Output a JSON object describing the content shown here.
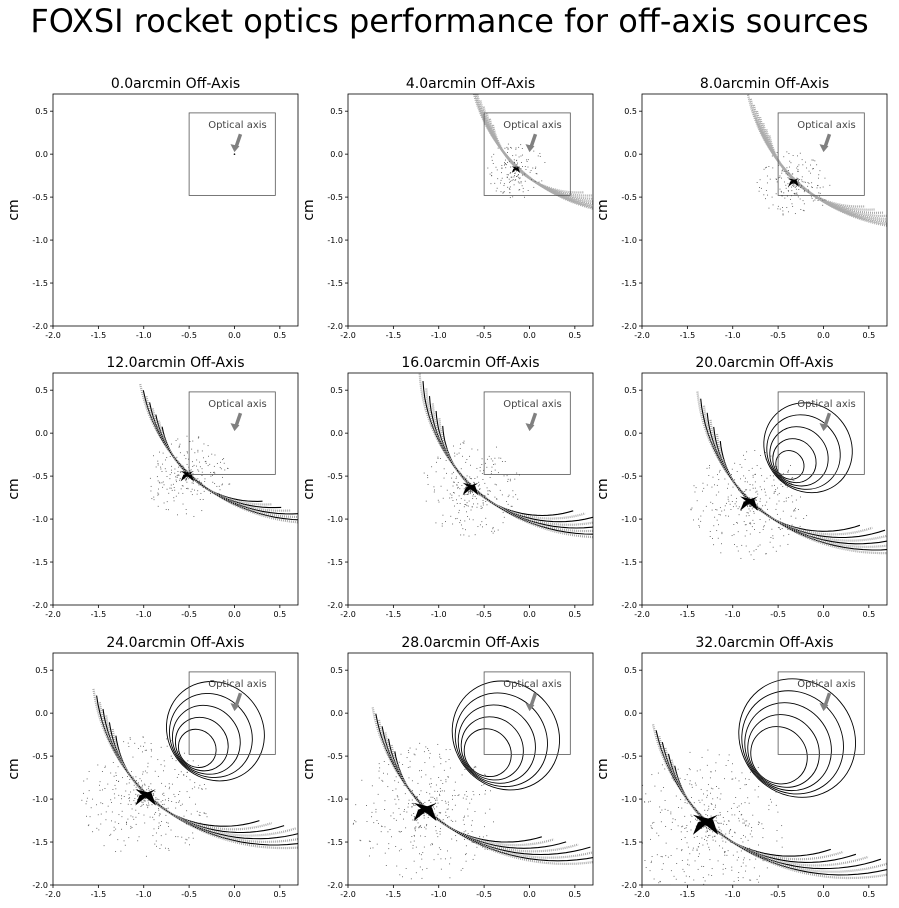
{
  "figure": {
    "title": "FOXSI rocket optics performance for off-axis sources"
  },
  "chart_data": [
    {
      "type": "scatter",
      "title": "0.0arcmin Off-Axis",
      "offaxis_arcmin": 0.0,
      "ylabel": "cm",
      "xlabel": "",
      "xlim": [
        -2.0,
        0.7
      ],
      "ylim": [
        -2.0,
        0.7
      ],
      "xticks": [
        "-2.0",
        "-1.5",
        "-1.0",
        "-0.5",
        "0.0",
        "0.5"
      ],
      "yticks": [
        "-2.0",
        "-1.5",
        "-1.0",
        "-0.5",
        "0.0",
        "0.5"
      ],
      "inset_box": {
        "x0": -0.5,
        "x1": 0.45,
        "y0": -0.48,
        "y1": 0.48
      },
      "annotation": {
        "text": "Optical axis",
        "point": [
          0.0,
          0.0
        ]
      },
      "focus": [
        0.0,
        0.0
      ]
    },
    {
      "type": "scatter",
      "title": "4.0arcmin Off-Axis",
      "offaxis_arcmin": 4.0,
      "ylabel": "cm",
      "xlabel": "",
      "xlim": [
        -2.0,
        0.7
      ],
      "ylim": [
        -2.0,
        0.7
      ],
      "xticks": [
        "-2.0",
        "-1.5",
        "-1.0",
        "-0.5",
        "0.0",
        "0.5"
      ],
      "yticks": [
        "-2.0",
        "-1.5",
        "-1.0",
        "-0.5",
        "0.0",
        "0.5"
      ],
      "inset_box": {
        "x0": -0.5,
        "x1": 0.45,
        "y0": -0.48,
        "y1": 0.48
      },
      "annotation": {
        "text": "Optical axis",
        "point": [
          0.0,
          0.0
        ]
      },
      "focus": [
        -0.15,
        -0.18
      ]
    },
    {
      "type": "scatter",
      "title": "8.0arcmin Off-Axis",
      "offaxis_arcmin": 8.0,
      "ylabel": "cm",
      "xlabel": "",
      "xlim": [
        -2.0,
        0.7
      ],
      "ylim": [
        -2.0,
        0.7
      ],
      "xticks": [
        "-2.0",
        "-1.5",
        "-1.0",
        "-0.5",
        "0.0",
        "0.5"
      ],
      "yticks": [
        "-2.0",
        "-1.5",
        "-1.0",
        "-0.5",
        "0.0",
        "0.5"
      ],
      "inset_box": {
        "x0": -0.5,
        "x1": 0.45,
        "y0": -0.48,
        "y1": 0.48
      },
      "annotation": {
        "text": "Optical axis",
        "point": [
          0.0,
          0.0
        ]
      },
      "focus": [
        -0.33,
        -0.33
      ]
    },
    {
      "type": "scatter",
      "title": "12.0arcmin Off-Axis",
      "offaxis_arcmin": 12.0,
      "ylabel": "cm",
      "xlabel": "",
      "xlim": [
        -2.0,
        0.7
      ],
      "ylim": [
        -2.0,
        0.7
      ],
      "xticks": [
        "-2.0",
        "-1.5",
        "-1.0",
        "-0.5",
        "0.0",
        "0.5"
      ],
      "yticks": [
        "-2.0",
        "-1.5",
        "-1.0",
        "-0.5",
        "0.0",
        "0.5"
      ],
      "inset_box": {
        "x0": -0.5,
        "x1": 0.45,
        "y0": -0.48,
        "y1": 0.48
      },
      "annotation": {
        "text": "Optical axis",
        "point": [
          0.0,
          0.0
        ]
      },
      "focus": [
        -0.52,
        -0.5
      ]
    },
    {
      "type": "scatter",
      "title": "16.0arcmin Off-Axis",
      "offaxis_arcmin": 16.0,
      "ylabel": "cm",
      "xlabel": "",
      "xlim": [
        -2.0,
        0.7
      ],
      "ylim": [
        -2.0,
        0.7
      ],
      "xticks": [
        "-2.0",
        "-1.5",
        "-1.0",
        "-0.5",
        "0.0",
        "0.5"
      ],
      "yticks": [
        "-2.0",
        "-1.5",
        "-1.0",
        "-0.5",
        "0.0",
        "0.5"
      ],
      "inset_box": {
        "x0": -0.5,
        "x1": 0.45,
        "y0": -0.48,
        "y1": 0.48
      },
      "annotation": {
        "text": "Optical axis",
        "point": [
          0.0,
          0.0
        ]
      },
      "focus": [
        -0.65,
        -0.65
      ]
    },
    {
      "type": "scatter",
      "title": "20.0arcmin Off-Axis",
      "offaxis_arcmin": 20.0,
      "ylabel": "cm",
      "xlabel": "",
      "xlim": [
        -2.0,
        0.7
      ],
      "ylim": [
        -2.0,
        0.7
      ],
      "xticks": [
        "-2.0",
        "-1.5",
        "-1.0",
        "-0.5",
        "0.0",
        "0.5"
      ],
      "yticks": [
        "-2.0",
        "-1.5",
        "-1.0",
        "-0.5",
        "0.0",
        "0.5"
      ],
      "inset_box": {
        "x0": -0.5,
        "x1": 0.45,
        "y0": -0.48,
        "y1": 0.48
      },
      "annotation": {
        "text": "Optical axis",
        "point": [
          0.0,
          0.0
        ]
      },
      "focus": [
        -0.82,
        -0.82
      ]
    },
    {
      "type": "scatter",
      "title": "24.0arcmin Off-Axis",
      "offaxis_arcmin": 24.0,
      "ylabel": "cm",
      "xlabel": "",
      "xlim": [
        -2.0,
        0.7
      ],
      "ylim": [
        -2.0,
        0.7
      ],
      "xticks": [
        "-2.0",
        "-1.5",
        "-1.0",
        "-0.5",
        "0.0",
        "0.5"
      ],
      "yticks": [
        "-2.0",
        "-1.5",
        "-1.0",
        "-0.5",
        "0.0",
        "0.5"
      ],
      "inset_box": {
        "x0": -0.5,
        "x1": 0.45,
        "y0": -0.48,
        "y1": 0.48
      },
      "annotation": {
        "text": "Optical axis",
        "point": [
          0.0,
          0.0
        ]
      },
      "focus": [
        -0.98,
        -0.98
      ]
    },
    {
      "type": "scatter",
      "title": "28.0arcmin Off-Axis",
      "offaxis_arcmin": 28.0,
      "ylabel": "cm",
      "xlabel": "",
      "xlim": [
        -2.0,
        0.7
      ],
      "ylim": [
        -2.0,
        0.7
      ],
      "xticks": [
        "-2.0",
        "-1.5",
        "-1.0",
        "-0.5",
        "0.0",
        "0.5"
      ],
      "yticks": [
        "-2.0",
        "-1.5",
        "-1.0",
        "-0.5",
        "0.0",
        "0.5"
      ],
      "inset_box": {
        "x0": -0.5,
        "x1": 0.45,
        "y0": -0.48,
        "y1": 0.48
      },
      "annotation": {
        "text": "Optical axis",
        "point": [
          0.0,
          0.0
        ]
      },
      "focus": [
        -1.15,
        -1.15
      ]
    },
    {
      "type": "scatter",
      "title": "32.0arcmin Off-Axis",
      "offaxis_arcmin": 32.0,
      "ylabel": "cm",
      "xlabel": "",
      "xlim": [
        -2.0,
        0.7
      ],
      "ylim": [
        -2.0,
        0.7
      ],
      "xticks": [
        "-2.0",
        "-1.5",
        "-1.0",
        "-0.5",
        "0.0",
        "0.5"
      ],
      "yticks": [
        "-2.0",
        "-1.5",
        "-1.0",
        "-0.5",
        "0.0",
        "0.5"
      ],
      "inset_box": {
        "x0": -0.5,
        "x1": 0.45,
        "y0": -0.48,
        "y1": 0.48
      },
      "annotation": {
        "text": "Optical axis",
        "point": [
          0.0,
          0.0
        ]
      },
      "focus": [
        -1.3,
        -1.3
      ]
    }
  ],
  "colors": {
    "points": "#000000",
    "arrow": "#808080",
    "box": "#555555",
    "text": "#000000"
  }
}
